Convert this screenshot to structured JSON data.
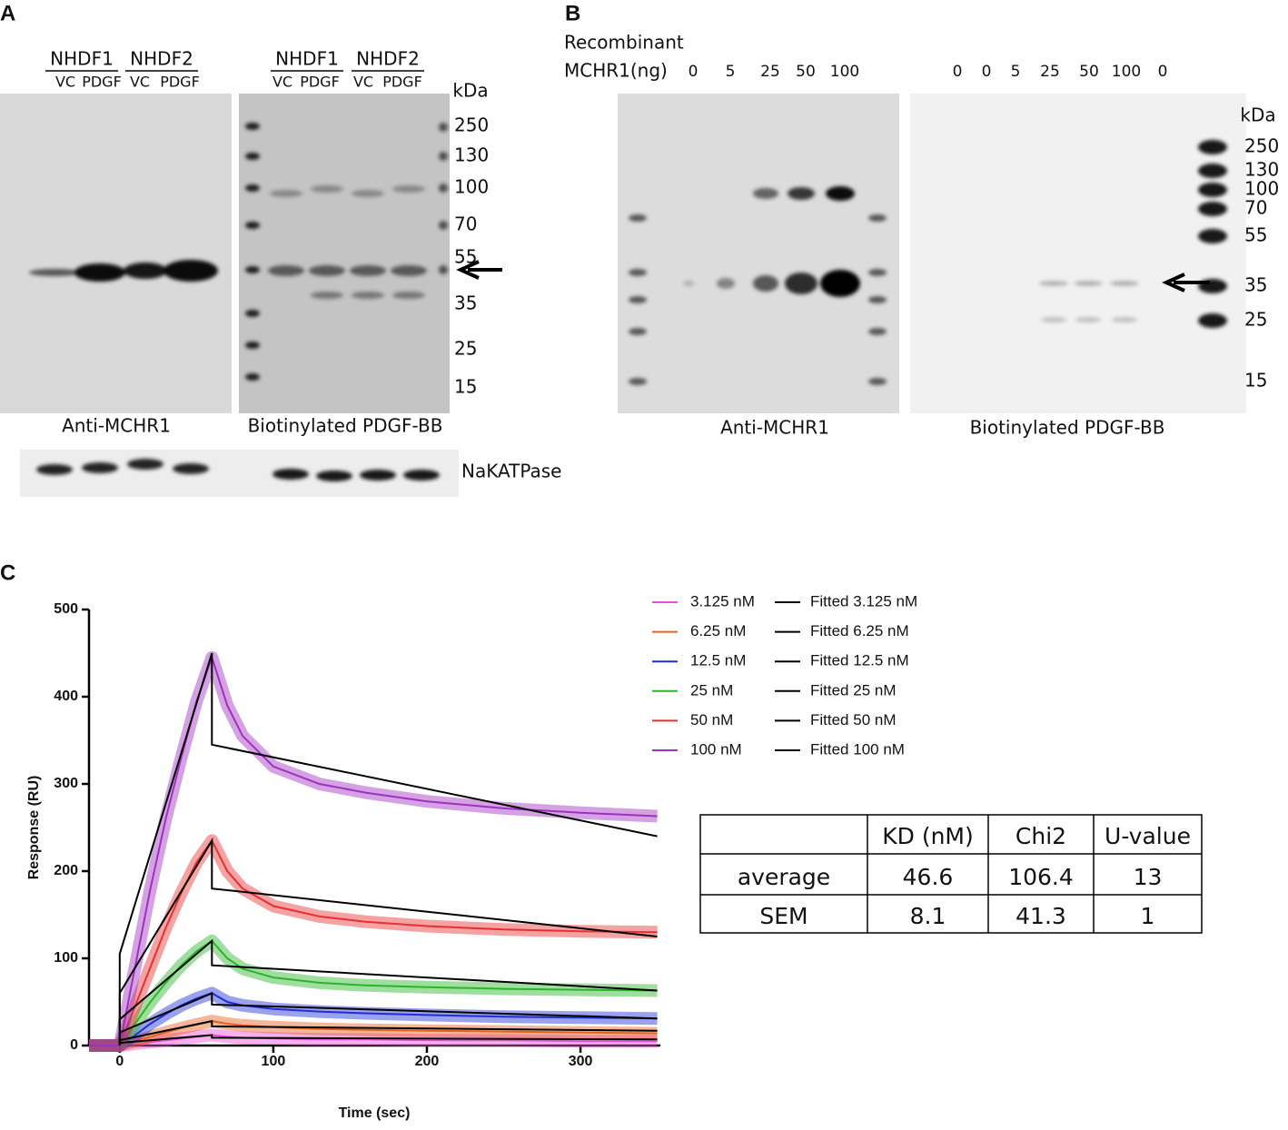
{
  "panel_a": {
    "label": "A",
    "groups": [
      "NHDF1",
      "NHDF2",
      "NHDF1",
      "NHDF2"
    ],
    "lanes": [
      "VC",
      "PDGF",
      "VC",
      "PDGF",
      "VC",
      "PDGF",
      "VC",
      "PDGF"
    ],
    "kda_label": "kDa",
    "markers": [
      250,
      130,
      100,
      70,
      55,
      35,
      25,
      15
    ],
    "blot_labels": [
      "Anti-MCHR1",
      "Biotinylated PDGF-BB"
    ],
    "loading_label": "NaKATPase"
  },
  "panel_b": {
    "label": "B",
    "axis_label": [
      "Recombinant",
      "MCHR1(ng)"
    ],
    "lanes_left": [
      0,
      5,
      25,
      50,
      100
    ],
    "lanes_right": [
      0,
      0,
      5,
      25,
      50,
      100,
      0
    ],
    "kda_label": "kDa",
    "markers": [
      250,
      130,
      100,
      70,
      55,
      35,
      25,
      15
    ],
    "blot_labels": [
      "Anti-MCHR1",
      "Biotinylated PDGF-BB"
    ]
  },
  "panel_c_label": "C",
  "chart_data": {
    "type": "line",
    "x_label": "Time (sec)",
    "y_label": "Response (RU)",
    "x": [
      -20,
      0,
      10,
      20,
      30,
      40,
      50,
      60,
      70,
      80,
      100,
      130,
      160,
      200,
      250,
      300,
      350
    ],
    "xlim": [
      -20,
      352
    ],
    "xticks": [
      0,
      100,
      200,
      300
    ],
    "ylim": [
      0,
      500
    ],
    "yticks": [
      0,
      100,
      200,
      300,
      400,
      500
    ],
    "series": [
      {
        "name": "3.125 nM",
        "color": "#e84fd8",
        "band": true,
        "values": [
          0,
          0,
          2,
          4,
          6,
          8,
          10,
          12,
          10,
          9,
          8,
          7,
          7,
          6,
          6,
          5,
          5
        ]
      },
      {
        "name": "6.25 nM",
        "color": "#e8601c",
        "band": true,
        "values": [
          0,
          0,
          5,
          10,
          15,
          20,
          24,
          28,
          25,
          23,
          21,
          19,
          18,
          17,
          16,
          15,
          14
        ]
      },
      {
        "name": "12.5 nM",
        "color": "#1f2fd8",
        "band": true,
        "values": [
          0,
          0,
          12,
          25,
          36,
          46,
          54,
          60,
          50,
          46,
          42,
          39,
          37,
          35,
          33,
          32,
          31
        ]
      },
      {
        "name": "25 nM",
        "color": "#2bb52b",
        "band": true,
        "values": [
          0,
          0,
          25,
          50,
          72,
          92,
          108,
          120,
          100,
          88,
          78,
          72,
          69,
          67,
          65,
          64,
          63
        ]
      },
      {
        "name": "50 nM",
        "color": "#e83030",
        "band": true,
        "values": [
          0,
          0,
          45,
          90,
          135,
          175,
          210,
          235,
          200,
          180,
          160,
          148,
          142,
          137,
          133,
          131,
          130
        ]
      },
      {
        "name": "100 nM",
        "color": "#a030c0",
        "band": true,
        "values": [
          0,
          0,
          90,
          180,
          260,
          330,
          395,
          445,
          390,
          355,
          320,
          300,
          290,
          280,
          272,
          267,
          263
        ]
      },
      {
        "name": "Fitted 3.125 nM",
        "color": "#000000",
        "x": [
          0,
          0,
          60,
          60,
          350
        ],
        "values": [
          0,
          3,
          12,
          9,
          7
        ]
      },
      {
        "name": "Fitted 6.25 nM",
        "color": "#000000",
        "x": [
          0,
          0,
          60,
          60,
          350
        ],
        "values": [
          0,
          6,
          28,
          22,
          17
        ]
      },
      {
        "name": "Fitted 12.5 nM",
        "color": "#000000",
        "x": [
          0,
          0,
          60,
          60,
          350
        ],
        "values": [
          0,
          15,
          60,
          47,
          31
        ]
      },
      {
        "name": "Fitted 25 nM",
        "color": "#000000",
        "x": [
          0,
          0,
          60,
          60,
          350
        ],
        "values": [
          0,
          30,
          120,
          92,
          63
        ]
      },
      {
        "name": "Fitted 50 nM",
        "color": "#000000",
        "x": [
          0,
          0,
          60,
          60,
          350
        ],
        "values": [
          0,
          60,
          235,
          180,
          125
        ]
      },
      {
        "name": "Fitted 100 nM",
        "color": "#000000",
        "x": [
          0,
          0,
          60,
          60,
          350
        ],
        "values": [
          0,
          105,
          450,
          345,
          240
        ]
      }
    ]
  },
  "table": {
    "header": [
      "KD (nM)",
      "Chi2",
      "U-value"
    ],
    "rows": [
      [
        "average",
        46.6,
        106.4,
        13
      ],
      [
        "SEM",
        8.1,
        41.3,
        1
      ]
    ]
  }
}
